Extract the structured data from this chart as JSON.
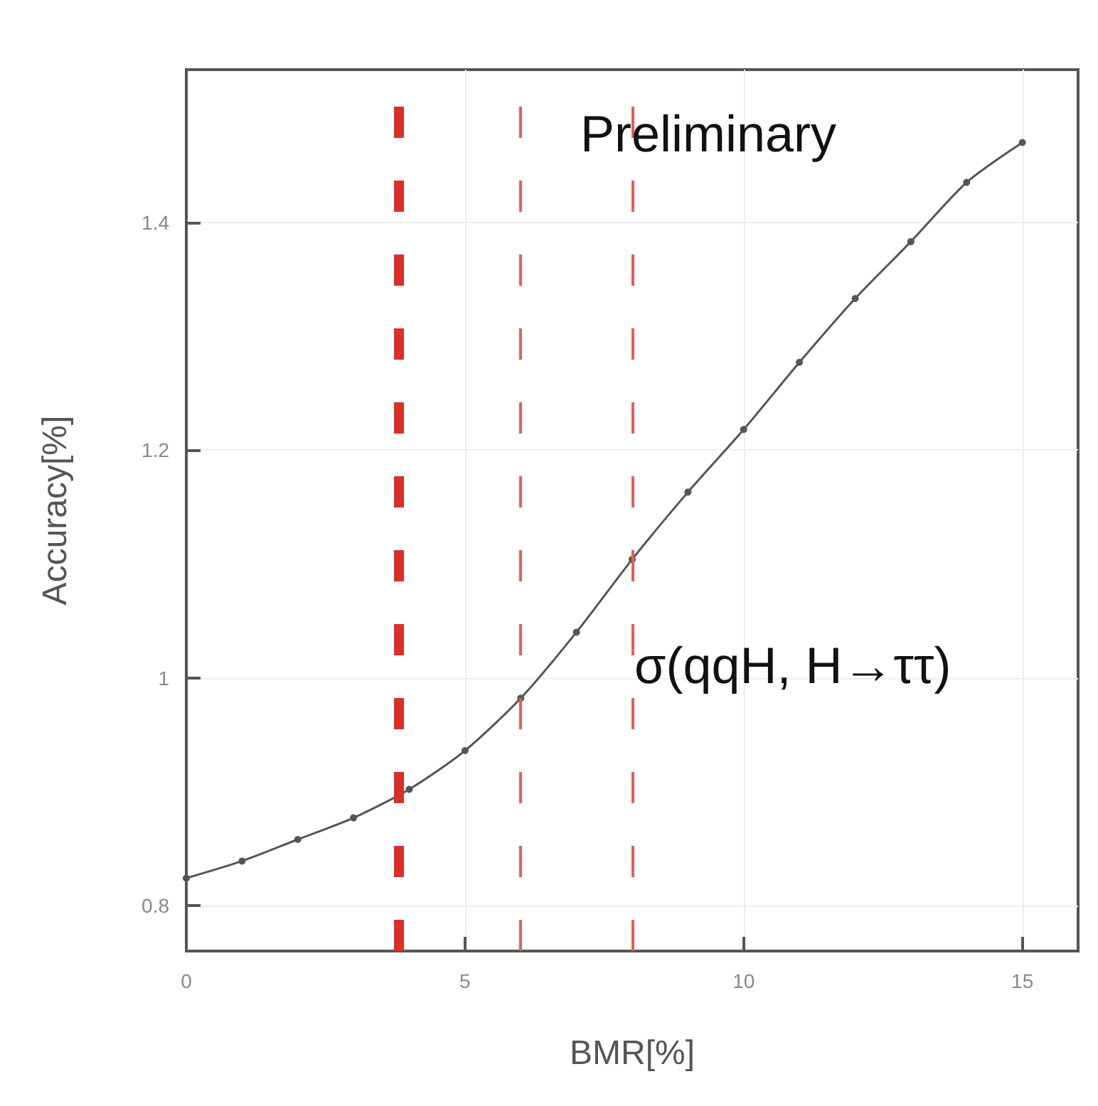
{
  "chart_data": {
    "type": "line",
    "xlabel": "BMR[%]",
    "ylabel": "Accuracy[%]",
    "annotations": [
      "Preliminary",
      "σ(qqH, H→ττ)"
    ],
    "x": [
      0,
      1,
      2,
      3,
      4,
      5,
      6,
      7,
      8,
      9,
      10,
      11,
      12,
      13,
      14,
      15
    ],
    "series": [
      {
        "color": "#555555",
        "values": [
          0.824,
          0.839,
          0.858,
          0.877,
          0.902,
          0.936,
          0.982,
          1.04,
          1.104,
          1.163,
          1.218,
          1.277,
          1.333,
          1.383,
          1.435,
          1.47
        ]
      }
    ],
    "xlim": [
      0,
      16
    ],
    "xticks": [
      0,
      5,
      10,
      15
    ],
    "ylim": [
      0.76,
      1.534
    ],
    "yticks": [
      0.8,
      1,
      1.2,
      1.4
    ],
    "ref_lines": [
      {
        "axis": "x",
        "value": 3.8,
        "color": "#d9302a",
        "line_style": "dashed"
      },
      {
        "axis": "x",
        "value": 6,
        "color": "#e0605a",
        "line_style": "dashed"
      },
      {
        "axis": "x",
        "value": 8,
        "color": "#e0605a",
        "line_style": "dashed"
      }
    ],
    "grid": true,
    "marker": "circle",
    "line_style": "solid"
  }
}
